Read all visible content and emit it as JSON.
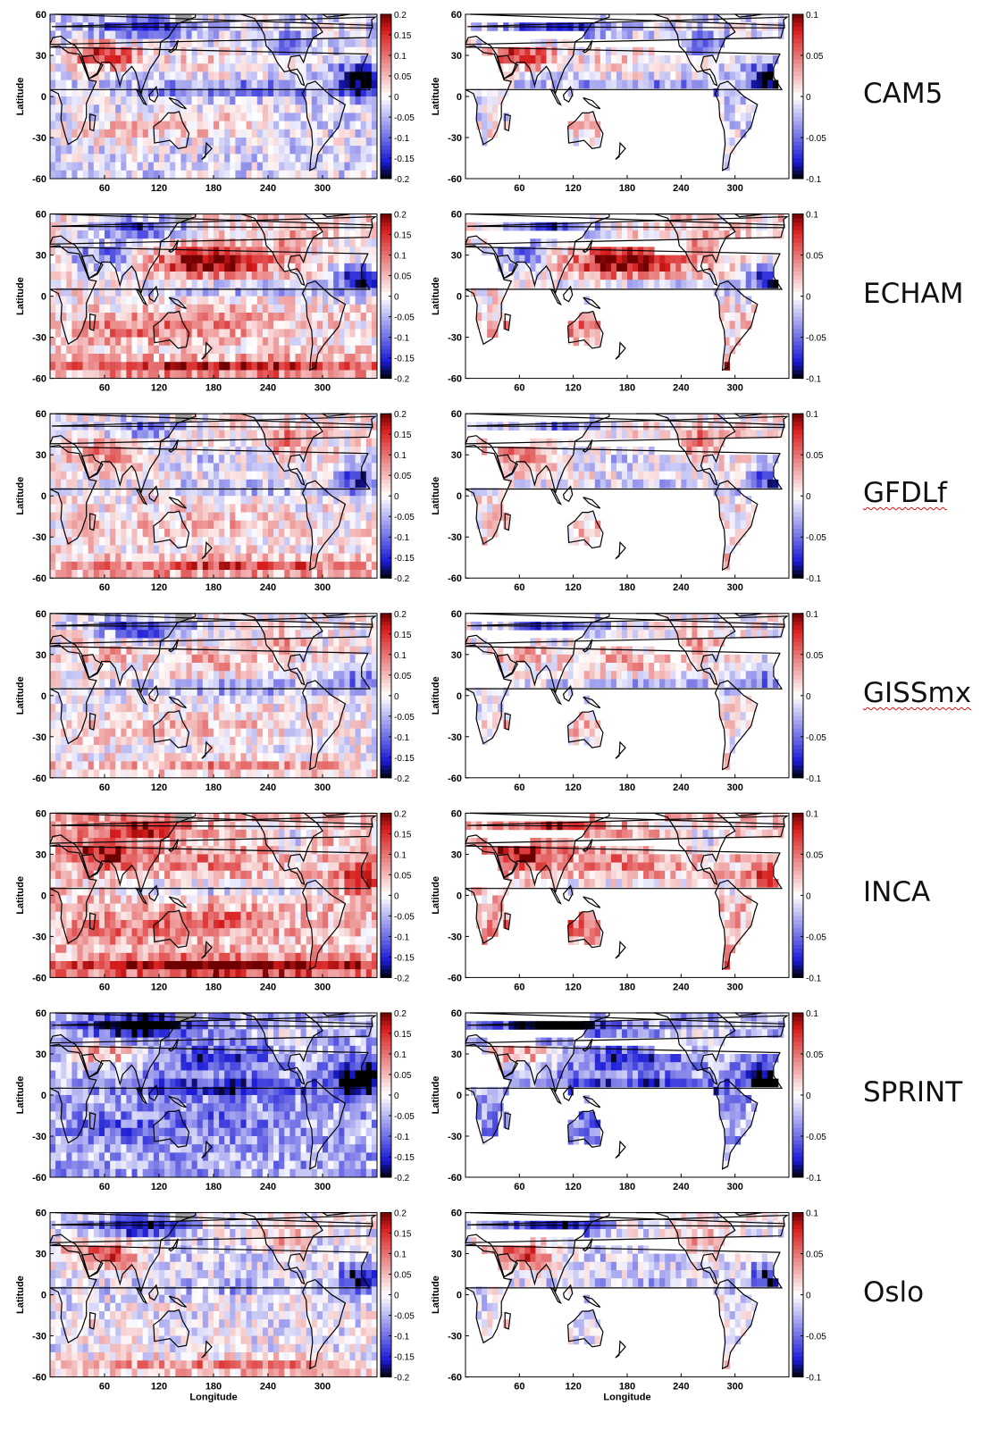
{
  "figure": {
    "rows": [
      {
        "model": "CAM5",
        "spell_underline": false
      },
      {
        "model": "ECHAM",
        "spell_underline": false
      },
      {
        "model": "GFDLf",
        "spell_underline": true
      },
      {
        "model": "GISSmx",
        "spell_underline": true
      },
      {
        "model": "INCA",
        "spell_underline": false
      },
      {
        "model": "SPRINT",
        "spell_underline": false
      },
      {
        "model": "Oslo",
        "spell_underline": false
      }
    ],
    "colors": {
      "negative_extreme": "#000000",
      "negative": "#1a1ad6",
      "neutral": "#ffffff",
      "positive": "#d81e1e",
      "positive_extreme": "#6e0000",
      "land_mask": "#9e9e9e",
      "coastline": "#000000"
    }
  },
  "chart_data": [
    {
      "type": "heatmap",
      "panel": "left",
      "title": "",
      "ylabel": "Latitude",
      "xlabel": "Longitude",
      "xlim": [
        0,
        360
      ],
      "ylim": [
        -60,
        60
      ],
      "xticks": [
        60,
        120,
        180,
        240,
        300
      ],
      "yticks": [
        60,
        30,
        0,
        -30,
        -60
      ],
      "colorbar": {
        "min": -0.2,
        "max": 0.2,
        "ticks": [
          0.2,
          0.15,
          0.1,
          0.05,
          0,
          -0.05,
          -0.1,
          -0.15,
          -0.2
        ],
        "tick_labels": [
          "0.2",
          "0.15",
          "0.1",
          "0.05",
          "0",
          "-0.05",
          "-0.1",
          "-0.15",
          "-0.2"
        ]
      },
      "x_label_shown_on_last_row_only": true
    },
    {
      "type": "heatmap",
      "panel": "right",
      "title": "",
      "ylabel": "Latitude",
      "xlabel": "Longitude",
      "xlim": [
        0,
        360
      ],
      "ylim": [
        -60,
        60
      ],
      "xticks": [
        60,
        120,
        180,
        240,
        300
      ],
      "yticks": [
        60,
        30,
        0,
        -30,
        -60
      ],
      "colorbar": {
        "min": -0.1,
        "max": 0.1,
        "ticks": [
          0.1,
          0.05,
          0,
          -0.05,
          -0.1
        ],
        "tick_labels": [
          "0.1",
          "0.05",
          "0",
          "-0.05",
          "-0.1"
        ]
      },
      "land_only": true,
      "x_label_shown_on_last_row_only": true
    }
  ]
}
